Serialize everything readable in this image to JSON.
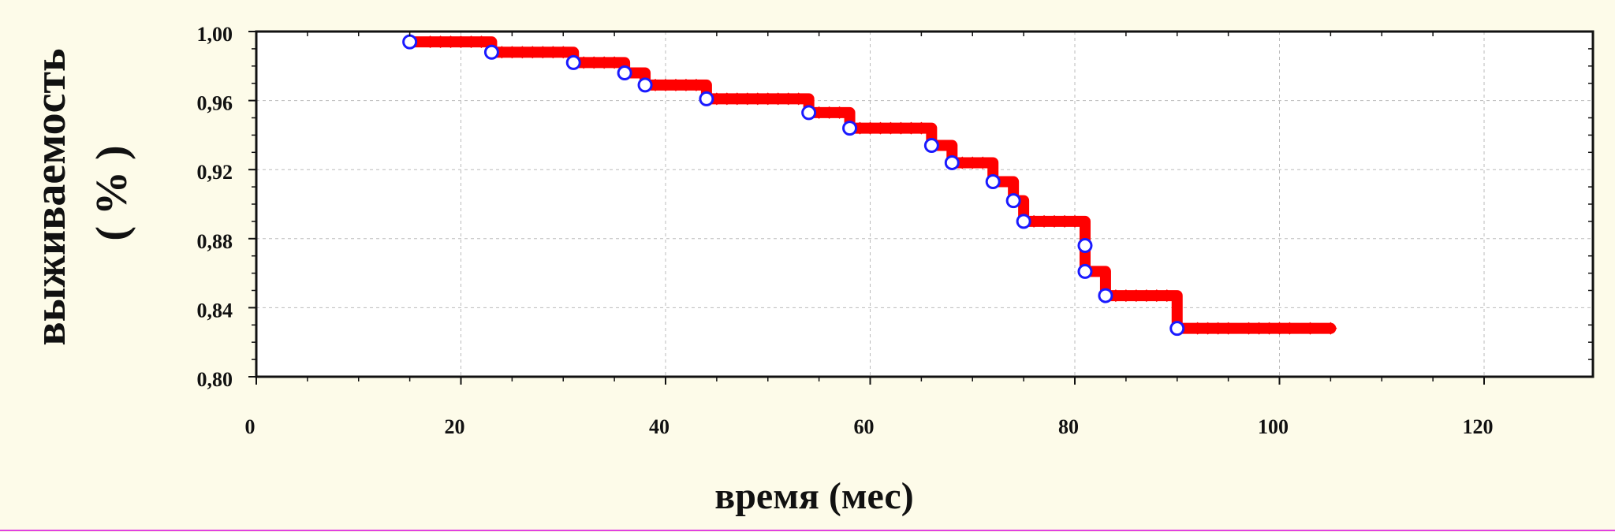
{
  "chart_data": {
    "type": "line",
    "title": "",
    "xlabel": "время (мес)",
    "ylabel_line1": "выживаемость",
    "ylabel_line2": "( % )",
    "xlim": [
      0,
      130
    ],
    "ylim": [
      0.8,
      1.0
    ],
    "x_ticks": [
      0,
      20,
      40,
      60,
      80,
      100,
      120
    ],
    "x_tick_labels": [
      "0",
      "20",
      "40",
      "60",
      "80",
      "100",
      "120"
    ],
    "y_ticks": [
      0.8,
      0.84,
      0.88,
      0.92,
      0.96,
      1.0
    ],
    "y_tick_labels": [
      "0,80",
      "0,84",
      "0,88",
      "0,92",
      "0,96",
      "1,00"
    ],
    "grid": true,
    "series": [
      {
        "name": "",
        "color": "#ff0000",
        "step_x": [
          15.0,
          23.0,
          31.0,
          36.0,
          38.0,
          44.0,
          54.0,
          58.0,
          66.0,
          68.0,
          72.0,
          74.0,
          75.0,
          81.0,
          81.0,
          83.0,
          90.0,
          105.0
        ],
        "step_y": [
          0.994,
          0.988,
          0.982,
          0.976,
          0.969,
          0.961,
          0.953,
          0.944,
          0.934,
          0.924,
          0.913,
          0.902,
          0.89,
          0.876,
          0.861,
          0.847,
          0.828,
          0.828
        ],
        "censored_x": [
          17,
          18,
          19,
          20,
          21,
          22,
          24,
          25,
          26,
          27,
          28,
          29,
          30,
          32,
          33,
          34,
          35,
          39,
          40,
          41,
          42,
          43,
          45,
          46,
          47,
          48,
          49,
          50,
          51,
          52,
          53,
          55,
          56,
          57,
          59,
          60,
          61,
          62,
          63,
          64,
          65,
          69,
          70,
          71,
          76,
          77,
          78,
          79,
          80,
          84,
          85,
          86,
          87,
          88,
          89,
          92,
          93,
          94,
          95,
          97,
          98,
          99,
          100,
          101,
          103,
          105
        ]
      }
    ],
    "events": {
      "color": "#1a1aff",
      "x": [
        15.0,
        23.0,
        31.0,
        36.0,
        38.0,
        44.0,
        54.0,
        58.0,
        66.0,
        68.0,
        72.0,
        74.0,
        75.0,
        81.0,
        81.0,
        83.0,
        90.0
      ],
      "y": [
        0.994,
        0.988,
        0.982,
        0.976,
        0.969,
        0.961,
        0.953,
        0.944,
        0.934,
        0.924,
        0.913,
        0.902,
        0.89,
        0.876,
        0.861,
        0.847,
        0.828
      ]
    }
  }
}
